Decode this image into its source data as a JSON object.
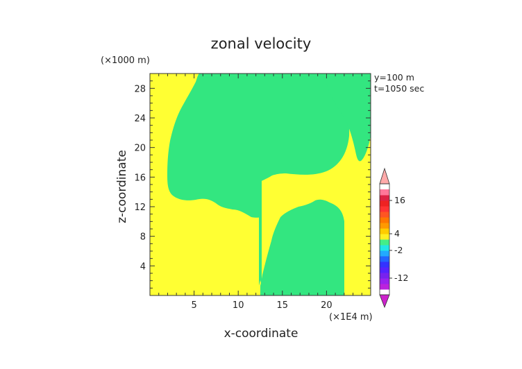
{
  "chart_data": {
    "type": "heatmap",
    "title": "zonal velocity",
    "xlabel": "x-coordinate",
    "ylabel": "z-coordinate",
    "x_unit": "(×1E4 m)",
    "y_unit": "(×1000 m)",
    "annotations": [
      "y=100 m",
      "t=1050 sec"
    ],
    "xlim": [
      0,
      25
    ],
    "ylim": [
      0,
      30
    ],
    "x_ticks": [
      5,
      10,
      15,
      20
    ],
    "y_ticks": [
      4,
      8,
      12,
      16,
      20,
      24,
      28
    ],
    "background_level": "2 to 4",
    "regions": [
      {
        "level": "0 to 2",
        "description": "left lobe (x ~2-12.5, z ~12-30)"
      },
      {
        "level": "0 to 2",
        "description": "central vertical band and right lobe (x ~10-22, z 0-30)"
      },
      {
        "level": "0 to 2",
        "description": "upper right lobe (x ~20-25, z ~18-30)"
      }
    ],
    "colorbar": {
      "tick_labels": [
        "16",
        "4",
        "-2",
        "-12"
      ],
      "tick_values": [
        16,
        4,
        -2,
        -12
      ],
      "range": [
        -18,
        22
      ],
      "step": 2,
      "extend": "both",
      "colors": [
        "#cc22cc",
        "#bb22dd",
        "#9922ee",
        "#7722ee",
        "#5522ff",
        "#3333ff",
        "#2266ff",
        "#22aaff",
        "#22e6e6",
        "#44ee88",
        "#ffee22",
        "#ffcc00",
        "#ff9900",
        "#ff7700",
        "#ff5522",
        "#ff3333",
        "#ee2222",
        "#dd2244",
        "#ff7799",
        "#ffaaaa"
      ]
    },
    "colors": {
      "positive": "#ffff33",
      "near_zero": "#33e680"
    }
  }
}
